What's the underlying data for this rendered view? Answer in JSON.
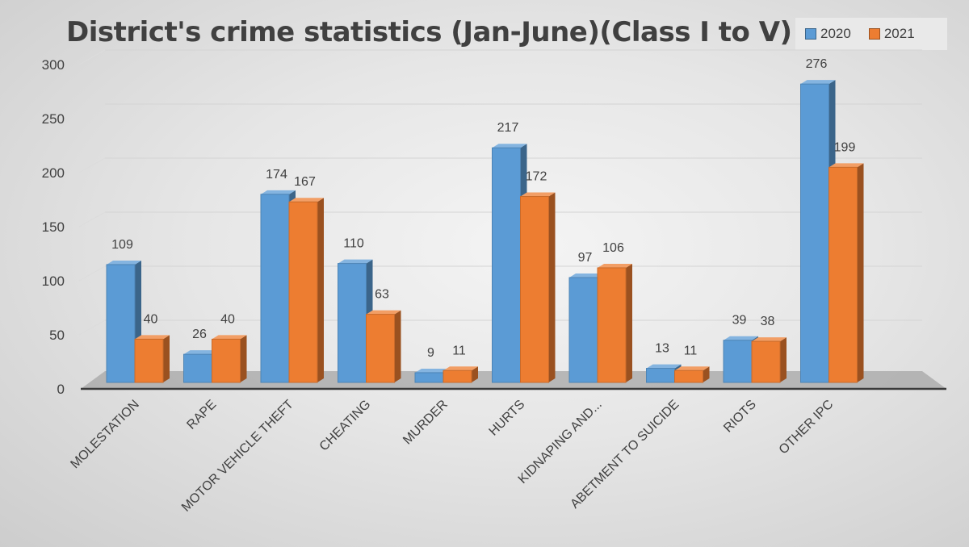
{
  "chart_data": {
    "type": "bar",
    "title": "District's crime statistics (Jan-June)(Class I to V)",
    "categories": [
      "MOLESTATION",
      "RAPE",
      "MOTOR VEHICLE THEFT",
      "CHEATING",
      "MURDER",
      "HURTS",
      "KIDNAPING AND...",
      "ABETMENT TO SUICIDE",
      "RIOTS",
      "OTHER IPC"
    ],
    "series": [
      {
        "name": "2020",
        "values": [
          109,
          26,
          174,
          110,
          9,
          217,
          97,
          13,
          39,
          276
        ],
        "color": "#5b9bd5"
      },
      {
        "name": "2021",
        "values": [
          40,
          40,
          167,
          63,
          11,
          172,
          106,
          11,
          38,
          199
        ],
        "color": "#ed7d31"
      }
    ],
    "y_ticks": [
      "0",
      "50",
      "100",
      "150",
      "200",
      "250",
      "300"
    ],
    "ylim": [
      0,
      300
    ],
    "grid": true,
    "legend_position": "top-right",
    "style": "3d-clustered-column"
  }
}
